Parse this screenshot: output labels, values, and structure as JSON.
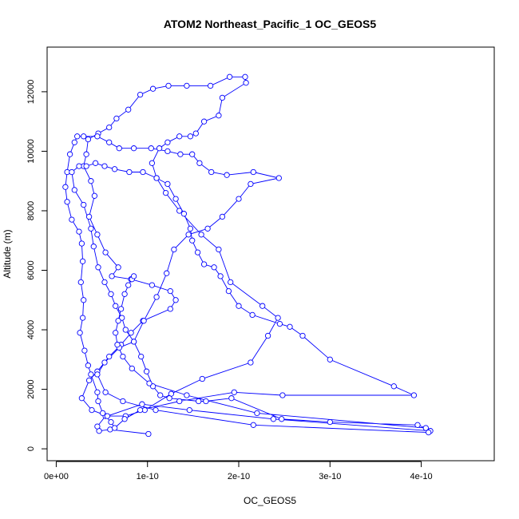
{
  "chart_data": {
    "type": "line",
    "title": "ATOM2 Northeast_Pacific_1 OC_GEOS5",
    "xlabel": "OC_GEOS5",
    "ylabel": "Altitude (m)",
    "xlim": [
      -1e-11,
      4.8e-10
    ],
    "ylim": [
      -400,
      13500
    ],
    "xticks": [
      0,
      1e-10,
      2e-10,
      3e-10,
      4e-10
    ],
    "xtick_labels": [
      "0e+00",
      "1e-10",
      "2e-10",
      "3e-10",
      "4e-10"
    ],
    "yticks": [
      0,
      2000,
      4000,
      6000,
      8000,
      10000,
      12000
    ],
    "ytick_labels": [
      "0",
      "2000",
      "4000",
      "6000",
      "8000",
      "10000",
      "12000"
    ],
    "grid": false,
    "marker": "open-circle",
    "series": [
      {
        "color": "#0000ff",
        "points": [
          [
            1.01e-10,
            500
          ],
          [
            5.9e-11,
            650
          ],
          [
            4.7e-11,
            600
          ],
          [
            4.5e-11,
            750
          ],
          [
            5.4e-11,
            1100
          ],
          [
            7.6e-11,
            1100
          ],
          [
            9.7e-11,
            1300
          ],
          [
            1.26e-10,
            1850
          ],
          [
            1.6e-10,
            2350
          ],
          [
            2.13e-10,
            2900
          ],
          [
            2.32e-10,
            3800
          ],
          [
            2.43e-10,
            4400
          ],
          [
            2.26e-10,
            4800
          ],
          [
            1.91e-10,
            5600
          ],
          [
            1.78e-10,
            6700
          ],
          [
            1.59e-10,
            7200
          ],
          [
            1.35e-10,
            8000
          ],
          [
            1.2e-10,
            8600
          ],
          [
            1.1e-10,
            9100
          ],
          [
            1.05e-10,
            9600
          ],
          [
            1.13e-10,
            10100
          ],
          [
            1.22e-10,
            10300
          ],
          [
            1.35e-10,
            10500
          ],
          [
            1.47e-10,
            10500
          ],
          [
            1.53e-10,
            10600
          ],
          [
            1.62e-10,
            11000
          ],
          [
            1.78e-10,
            11200
          ],
          [
            1.82e-10,
            11800
          ],
          [
            2.08e-10,
            12300
          ],
          [
            2.07e-10,
            12500
          ],
          [
            1.9e-10,
            12500
          ],
          [
            1.69e-10,
            12200
          ],
          [
            1.43e-10,
            12200
          ],
          [
            1.23e-10,
            12200
          ],
          [
            1.06e-10,
            12100
          ],
          [
            9.2e-11,
            11900
          ],
          [
            7.9e-11,
            11400
          ],
          [
            6.6e-11,
            11100
          ],
          [
            5.8e-11,
            10800
          ],
          [
            4.6e-11,
            10600
          ],
          [
            3.5e-11,
            10400
          ],
          [
            3.3e-11,
            9900
          ],
          [
            3e-11,
            9500
          ],
          [
            3.8e-11,
            9000
          ],
          [
            4.2e-11,
            8500
          ],
          [
            3.6e-11,
            7800
          ],
          [
            4.5e-11,
            7200
          ],
          [
            5.4e-11,
            6600
          ],
          [
            6.8e-11,
            6100
          ],
          [
            6.1e-11,
            5800
          ],
          [
            8.2e-11,
            5700
          ],
          [
            1.05e-10,
            5500
          ],
          [
            1.25e-10,
            5300
          ],
          [
            1.31e-10,
            5000
          ],
          [
            1.25e-10,
            4700
          ],
          [
            9.5e-11,
            4300
          ],
          [
            8.2e-11,
            3900
          ],
          [
            7.1e-11,
            3500
          ],
          [
            5.8e-11,
            3100
          ],
          [
            4.5e-11,
            2600
          ],
          [
            3.6e-11,
            2300
          ],
          [
            2.8e-11,
            1700
          ],
          [
            3.9e-11,
            1300
          ],
          [
            5.6e-11,
            1100
          ],
          [
            9.4e-11,
            1500
          ],
          [
            1.46e-10,
            1300
          ],
          [
            2.38e-10,
            1000
          ],
          [
            4.1e-10,
            600
          ],
          [
            4.08e-10,
            550
          ],
          [
            2.16e-10,
            800
          ],
          [
            1.09e-10,
            1300
          ],
          [
            7.3e-11,
            1600
          ],
          [
            5.4e-11,
            1900
          ],
          [
            4.5e-11,
            2500
          ],
          [
            5.3e-11,
            2900
          ],
          [
            6.9e-11,
            3400
          ],
          [
            8.5e-11,
            3600
          ],
          [
            9.6e-11,
            4300
          ],
          [
            1.1e-10,
            5100
          ],
          [
            1.21e-10,
            5900
          ],
          [
            1.29e-10,
            6700
          ],
          [
            1.45e-10,
            7200
          ],
          [
            1.66e-10,
            7400
          ],
          [
            1.82e-10,
            7800
          ],
          [
            2e-10,
            8400
          ],
          [
            2.13e-10,
            8900
          ],
          [
            2.44e-10,
            9100
          ],
          [
            2.16e-10,
            9300
          ],
          [
            1.87e-10,
            9200
          ],
          [
            1.7e-10,
            9300
          ],
          [
            1.57e-10,
            9600
          ],
          [
            1.49e-10,
            9900
          ],
          [
            1.36e-10,
            9900
          ],
          [
            1.22e-10,
            10000
          ],
          [
            1.04e-10,
            10100
          ],
          [
            8.5e-11,
            10100
          ],
          [
            6.9e-11,
            10100
          ],
          [
            5.8e-11,
            10300
          ],
          [
            4.5e-11,
            10500
          ],
          [
            3e-11,
            10500
          ],
          [
            2.3e-11,
            10500
          ],
          [
            2e-11,
            10300
          ],
          [
            1.5e-11,
            9900
          ],
          [
            1.2e-11,
            9300
          ],
          [
            1e-11,
            8800
          ],
          [
            1.2e-11,
            8300
          ],
          [
            1.7e-11,
            7700
          ],
          [
            2.5e-11,
            7300
          ],
          [
            2.8e-11,
            6900
          ],
          [
            2.9e-11,
            6300
          ],
          [
            2.7e-11,
            5600
          ],
          [
            3e-11,
            5000
          ],
          [
            2.9e-11,
            4400
          ],
          [
            2.6e-11,
            3900
          ],
          [
            3.1e-11,
            3300
          ],
          [
            3.5e-11,
            2800
          ],
          [
            3.8e-11,
            2500
          ],
          [
            4.5e-11,
            1900
          ],
          [
            4.6e-11,
            1600
          ],
          [
            5.1e-11,
            1200
          ],
          [
            6e-11,
            900
          ],
          [
            6.4e-11,
            700
          ],
          [
            7.5e-11,
            1000
          ],
          [
            9.2e-11,
            1300
          ],
          [
            1.35e-10,
            1600
          ],
          [
            1.95e-10,
            1900
          ],
          [
            2.48e-10,
            1800
          ],
          [
            3.92e-10,
            1800
          ],
          [
            3.7e-10,
            2100
          ],
          [
            3e-10,
            3000
          ],
          [
            2.7e-10,
            3800
          ],
          [
            2.56e-10,
            4100
          ],
          [
            2.45e-10,
            4200
          ],
          [
            2.15e-10,
            4500
          ],
          [
            2e-10,
            4800
          ],
          [
            1.89e-10,
            5300
          ],
          [
            1.8e-10,
            5800
          ],
          [
            1.73e-10,
            6100
          ],
          [
            1.62e-10,
            6200
          ],
          [
            1.55e-10,
            6600
          ],
          [
            1.49e-10,
            7000
          ],
          [
            1.47e-10,
            7400
          ],
          [
            1.4e-10,
            7900
          ],
          [
            1.31e-10,
            8400
          ],
          [
            1.22e-10,
            8900
          ],
          [
            1.1e-10,
            9100
          ],
          [
            9.5e-11,
            9300
          ],
          [
            8e-11,
            9300
          ],
          [
            6.4e-11,
            9400
          ],
          [
            5.3e-11,
            9500
          ],
          [
            4.3e-11,
            9600
          ],
          [
            3.3e-11,
            9500
          ],
          [
            2.5e-11,
            9500
          ],
          [
            1.7e-11,
            9300
          ],
          [
            2e-11,
            8700
          ],
          [
            3e-11,
            8200
          ],
          [
            3.8e-11,
            7400
          ],
          [
            4.1e-11,
            6800
          ],
          [
            4.6e-11,
            6100
          ],
          [
            5.3e-11,
            5600
          ],
          [
            6e-11,
            5200
          ],
          [
            6.5e-11,
            4800
          ],
          [
            7.2e-11,
            4400
          ],
          [
            7.6e-11,
            4000
          ],
          [
            8.5e-11,
            3600
          ],
          [
            9.3e-11,
            3100
          ],
          [
            9.9e-11,
            2600
          ],
          [
            1.06e-10,
            2100
          ],
          [
            1.14e-10,
            1800
          ],
          [
            1.24e-10,
            1700
          ],
          [
            1.56e-10,
            1600
          ],
          [
            1.64e-10,
            1600
          ],
          [
            1.92e-10,
            1700
          ],
          [
            2.47e-10,
            1000
          ],
          [
            3e-10,
            900
          ],
          [
            3.96e-10,
            800
          ],
          [
            4.05e-10,
            700
          ],
          [
            2.2e-10,
            1200
          ],
          [
            1.43e-10,
            1800
          ],
          [
            1.02e-10,
            2200
          ],
          [
            8.3e-11,
            2700
          ],
          [
            7.3e-11,
            3100
          ],
          [
            6.7e-11,
            3500
          ],
          [
            6.5e-11,
            3900
          ],
          [
            6.8e-11,
            4300
          ],
          [
            7.1e-11,
            4700
          ],
          [
            7.5e-11,
            5200
          ],
          [
            7.9e-11,
            5500
          ],
          [
            8.3e-11,
            5700
          ],
          [
            8.5e-11,
            5800
          ]
        ]
      }
    ]
  }
}
